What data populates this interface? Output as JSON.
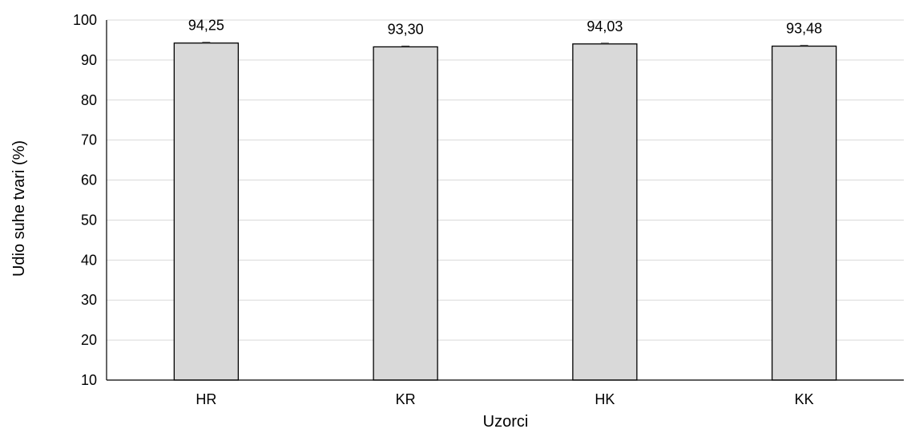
{
  "chart_data": {
    "type": "bar",
    "categories": [
      "HR",
      "KR",
      "HK",
      "KK"
    ],
    "values": [
      94.25,
      93.3,
      94.03,
      93.48
    ],
    "data_labels": [
      "94,25",
      "93,30",
      "94,03",
      "93,48"
    ],
    "title": "",
    "xlabel": "Uzorci",
    "ylabel": "Udio suhe tvari (%)",
    "ylim": [
      10,
      100
    ],
    "yticks": [
      10,
      20,
      30,
      40,
      50,
      60,
      70,
      80,
      90,
      100
    ],
    "grid": true,
    "legend": "none",
    "error_bars": true,
    "colors": {
      "bar_fill": "#d9d9d9",
      "bar_stroke": "#000000",
      "grid": "#d9d9d9",
      "error_bar": "#595959"
    }
  }
}
